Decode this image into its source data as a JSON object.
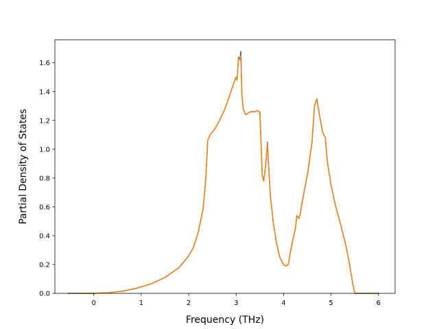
{
  "chart_data": {
    "type": "line",
    "xlabel": "Frequency (THz)",
    "ylabel": "Partial Density of States",
    "xlim": [
      -0.82,
      6.35
    ],
    "ylim": [
      0,
      1.76
    ],
    "xticks": [
      0,
      1,
      2,
      3,
      4,
      5,
      6
    ],
    "yticks": [
      0.0,
      0.2,
      0.4,
      0.6,
      0.8,
      1.0,
      1.2,
      1.4,
      1.6
    ],
    "grid": false,
    "legend": "none",
    "series": [
      {
        "color": "#1f77b4",
        "x": [
          -0.55,
          0.0,
          0.3,
          0.6,
          0.9,
          1.2,
          1.5,
          1.8,
          2.0,
          2.1,
          2.2,
          2.3,
          2.35,
          2.38,
          2.4,
          2.45,
          2.55,
          2.65,
          2.75,
          2.85,
          2.95,
          3.0,
          3.02,
          3.05,
          3.08,
          3.1,
          3.12,
          3.15,
          3.2,
          3.3,
          3.4,
          3.45,
          3.48,
          3.5,
          3.55,
          3.58,
          3.62,
          3.66,
          3.68,
          3.72,
          3.78,
          3.85,
          3.92,
          4.0,
          4.05,
          4.1,
          4.15,
          4.2,
          4.25,
          4.28,
          4.32,
          4.35,
          4.4,
          4.5,
          4.6,
          4.65,
          4.7,
          4.75,
          4.82,
          4.88,
          4.92,
          5.0,
          5.1,
          5.2,
          5.3,
          5.38,
          5.45,
          5.5,
          5.7,
          6.0
        ],
        "y": [
          0.0,
          0.0,
          0.005,
          0.015,
          0.035,
          0.065,
          0.11,
          0.18,
          0.26,
          0.32,
          0.42,
          0.58,
          0.75,
          0.92,
          1.06,
          1.1,
          1.14,
          1.2,
          1.27,
          1.36,
          1.46,
          1.5,
          1.48,
          1.64,
          1.62,
          1.68,
          1.38,
          1.28,
          1.24,
          1.26,
          1.26,
          1.27,
          1.26,
          1.26,
          0.82,
          0.78,
          0.88,
          1.05,
          0.92,
          0.68,
          0.5,
          0.35,
          0.25,
          0.2,
          0.19,
          0.2,
          0.3,
          0.38,
          0.45,
          0.54,
          0.52,
          0.55,
          0.65,
          0.82,
          1.05,
          1.3,
          1.35,
          1.25,
          1.12,
          1.08,
          0.92,
          0.75,
          0.6,
          0.48,
          0.35,
          0.22,
          0.08,
          0.0,
          0.0,
          0.0
        ]
      },
      {
        "color": "#ff7f0e",
        "x": [
          -0.55,
          0.0,
          0.3,
          0.6,
          0.9,
          1.2,
          1.5,
          1.8,
          2.0,
          2.1,
          2.2,
          2.3,
          2.35,
          2.38,
          2.4,
          2.45,
          2.55,
          2.65,
          2.75,
          2.85,
          2.95,
          3.0,
          3.02,
          3.05,
          3.08,
          3.1,
          3.12,
          3.15,
          3.2,
          3.3,
          3.4,
          3.45,
          3.48,
          3.5,
          3.55,
          3.58,
          3.62,
          3.66,
          3.68,
          3.72,
          3.78,
          3.85,
          3.92,
          4.0,
          4.05,
          4.1,
          4.15,
          4.2,
          4.25,
          4.28,
          4.32,
          4.35,
          4.4,
          4.5,
          4.6,
          4.65,
          4.7,
          4.75,
          4.82,
          4.88,
          4.92,
          5.0,
          5.1,
          5.2,
          5.3,
          5.38,
          5.45,
          5.5,
          5.7,
          6.0
        ],
        "y": [
          0.0,
          0.0,
          0.005,
          0.015,
          0.035,
          0.065,
          0.11,
          0.18,
          0.26,
          0.32,
          0.42,
          0.58,
          0.75,
          0.92,
          1.06,
          1.1,
          1.14,
          1.2,
          1.27,
          1.36,
          1.46,
          1.5,
          1.48,
          1.63,
          1.62,
          1.65,
          1.38,
          1.28,
          1.24,
          1.26,
          1.26,
          1.27,
          1.26,
          1.26,
          0.82,
          0.78,
          0.88,
          1.04,
          0.92,
          0.68,
          0.5,
          0.35,
          0.25,
          0.2,
          0.19,
          0.2,
          0.3,
          0.38,
          0.45,
          0.54,
          0.52,
          0.55,
          0.65,
          0.82,
          1.05,
          1.3,
          1.35,
          1.25,
          1.12,
          1.08,
          0.92,
          0.75,
          0.6,
          0.48,
          0.35,
          0.22,
          0.08,
          0.0,
          0.0,
          0.0
        ]
      }
    ]
  }
}
